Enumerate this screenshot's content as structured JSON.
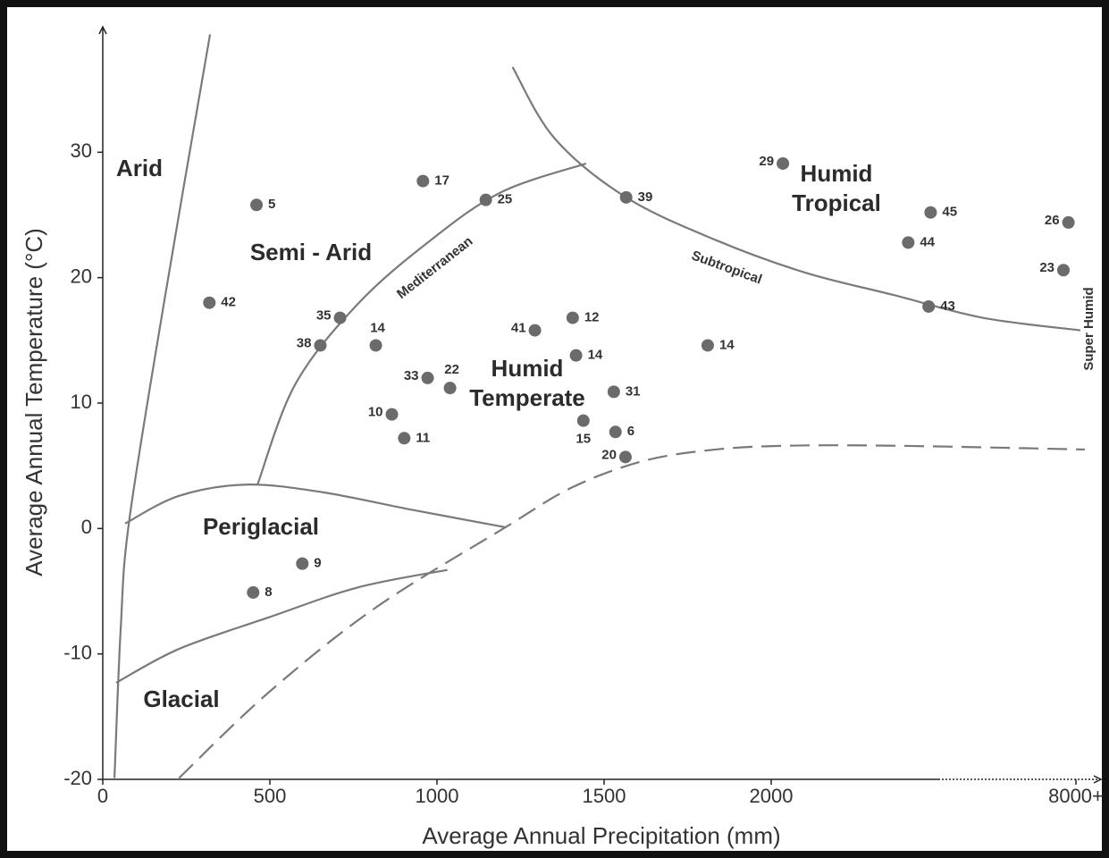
{
  "chart_data": {
    "type": "scatter",
    "x_label": "Average Annual Precipitation (mm)",
    "y_label": "Average Annual Temperature (°C)",
    "xlim": [
      0,
      9000
    ],
    "x_break": 2500,
    "xticks": [
      0,
      500,
      1000,
      1500,
      2000,
      {
        "value": 8000,
        "label": "8000+"
      }
    ],
    "ylim": [
      -20,
      40
    ],
    "yticks": [
      -20,
      -10,
      0,
      10,
      20,
      30
    ],
    "series": [
      {
        "color": "#6b6b6b",
        "x": [
          460,
          958,
          1146,
          1566,
          2035,
          2477,
          2410,
          2471,
          7700,
          7500,
          319,
          710,
          651,
          817,
          1293,
          1406,
          1416,
          1810,
          972,
          1039,
          865,
          902,
          1529,
          1438,
          1534,
          1564,
          597,
          450
        ],
        "values": [
          25.8,
          27.7,
          26.2,
          26.4,
          29.1,
          25.2,
          22.8,
          17.7,
          24.4,
          20.6,
          18.0,
          16.8,
          14.6,
          14.6,
          15.8,
          16.8,
          13.8,
          14.6,
          12.0,
          11.2,
          9.1,
          7.2,
          10.9,
          8.6,
          7.7,
          5.7,
          -2.8,
          -5.1
        ],
        "labels": [
          "5",
          "17",
          "25",
          "39",
          "29",
          "45",
          "44",
          "43",
          "26",
          "23",
          "42",
          "35",
          "38",
          "14",
          "41",
          "12",
          "14",
          "14",
          "33",
          "22",
          "10",
          "11",
          "31",
          "15",
          "6",
          "20",
          "9",
          "8"
        ]
      }
    ],
    "boundaries": [
      {
        "color": "#7a7a7a",
        "dashed": false,
        "x": [
          35,
          54,
          80,
          187,
          321
        ],
        "y": [
          -19.9,
          -7.8,
          0.8,
          18.6,
          39.4
        ]
      },
      {
        "color": "#7a7a7a",
        "dashed": false,
        "x": [
          67,
          228,
          428,
          656,
          924,
          1205
        ],
        "y": [
          0.4,
          2.6,
          3.5,
          2.9,
          1.5,
          0.1
        ]
      },
      {
        "color": "#7a7a7a",
        "dashed": false,
        "x": [
          40,
          228,
          495,
          763,
          1031
        ],
        "y": [
          -12.3,
          -9.6,
          -7.1,
          -4.7,
          -3.3
        ]
      },
      {
        "name": "Mediterranean",
        "color": "#7a7a7a",
        "dashed": false,
        "x": [
          463,
          576,
          763,
          977,
          1191,
          1446
        ],
        "y": [
          3.5,
          11.5,
          17.9,
          22.9,
          26.8,
          29.1
        ]
      },
      {
        "name": "Subtropical",
        "color": "#7a7a7a",
        "dashed": false,
        "x": [
          1226,
          1352,
          1566,
          1834,
          2102,
          2369,
          4274,
          8177
        ],
        "y": [
          36.8,
          31.1,
          26.4,
          23.0,
          20.4,
          18.6,
          16.8,
          15.8
        ]
      },
      {
        "color": "#7a7a7a",
        "dashed": true,
        "x": [
          228,
          495,
          817,
          1205,
          1406,
          1620,
          1834,
          2048,
          2369,
          8355
        ],
        "y": [
          -19.9,
          -13.1,
          -6.3,
          0.1,
          3.3,
          5.4,
          6.3,
          6.6,
          6.6,
          6.3
        ]
      }
    ],
    "extra_labels": [
      "Super Humid"
    ],
    "regions": [
      {
        "lines": [
          "Arid"
        ]
      },
      {
        "lines": [
          "Semi - Arid"
        ]
      },
      {
        "lines": [
          "Periglacial"
        ]
      },
      {
        "lines": [
          "Glacial"
        ]
      },
      {
        "lines": [
          "Humid",
          "Temperate"
        ]
      },
      {
        "lines": [
          "Humid",
          "Tropical"
        ]
      }
    ]
  }
}
